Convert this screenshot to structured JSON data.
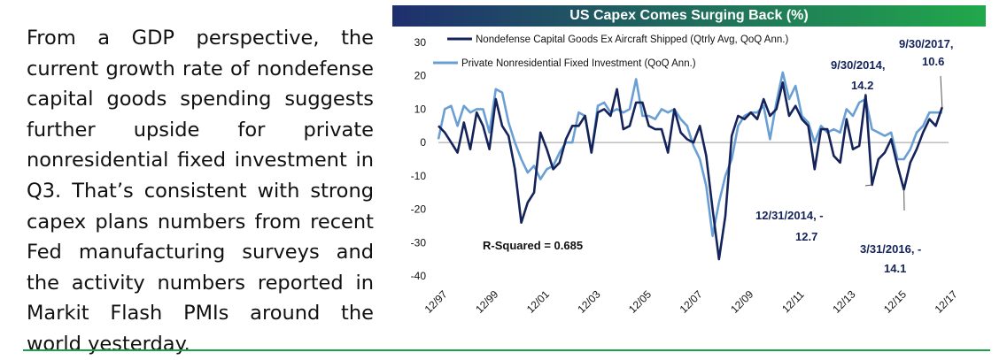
{
  "article": {
    "paragraph": "From a GDP perspective, the current growth rate of nondefense capital goods spending suggests further upside for private nonresidential fixed investment in Q3. That’s consistent with strong capex plans numbers from recent Fed manufacturing surveys and the activity numbers reported in Markit Flash PMIs around the world yesterday."
  },
  "colors": {
    "title_gradient_start": "#1f2f6e",
    "title_gradient_end": "#21a84b",
    "series_dark": "#14235a",
    "series_light": "#6a9fd4",
    "rule": "#1aa14a"
  },
  "chart_data": {
    "type": "line",
    "title": "US Capex Comes Surging Back (%)",
    "xlabel": "",
    "ylabel": "",
    "ylim": [
      -40,
      30
    ],
    "yticks": [
      30,
      20,
      10,
      0,
      -10,
      -20,
      -30,
      -40
    ],
    "xlim": [
      "1997-12",
      "2017-12"
    ],
    "xticks": [
      "12/97",
      "12/99",
      "12/01",
      "12/03",
      "12/05",
      "12/07",
      "12/09",
      "12/11",
      "12/13",
      "12/15",
      "12/17"
    ],
    "grid": false,
    "legend_position": "top",
    "series": [
      {
        "name": "Nondefense Capital Goods Ex Aircraft Shipped (Qtrly Avg, QoQ Ann.)",
        "x": [
          "1997-12",
          "1998-03",
          "1998-06",
          "1998-09",
          "1998-12",
          "1999-03",
          "1999-06",
          "1999-09",
          "1999-12",
          "2000-03",
          "2000-06",
          "2000-09",
          "2000-12",
          "2001-03",
          "2001-06",
          "2001-09",
          "2001-12",
          "2002-03",
          "2002-06",
          "2002-09",
          "2002-12",
          "2003-03",
          "2003-06",
          "2003-09",
          "2003-12",
          "2004-03",
          "2004-06",
          "2004-09",
          "2004-12",
          "2005-03",
          "2005-06",
          "2005-09",
          "2005-12",
          "2006-03",
          "2006-06",
          "2006-09",
          "2006-12",
          "2007-03",
          "2007-06",
          "2007-09",
          "2007-12",
          "2008-03",
          "2008-06",
          "2008-09",
          "2008-12",
          "2009-03",
          "2009-06",
          "2009-09",
          "2009-12",
          "2010-03",
          "2010-06",
          "2010-09",
          "2010-12",
          "2011-03",
          "2011-06",
          "2011-09",
          "2011-12",
          "2012-03",
          "2012-06",
          "2012-09",
          "2012-12",
          "2013-03",
          "2013-06",
          "2013-09",
          "2013-12",
          "2014-03",
          "2014-06",
          "2014-09",
          "2014-12",
          "2015-03",
          "2015-06",
          "2015-09",
          "2015-12",
          "2016-03",
          "2016-06",
          "2016-09",
          "2016-12",
          "2017-03",
          "2017-06",
          "2017-09"
        ],
        "values": [
          5,
          3,
          0,
          -3,
          6,
          -2,
          9,
          5,
          -2,
          13,
          5,
          2,
          -8,
          -24,
          -18,
          -15,
          3,
          -2,
          -8,
          -6,
          1,
          5,
          5,
          8,
          -3,
          9,
          10,
          8,
          16,
          4,
          5,
          12,
          12,
          5,
          4,
          4,
          -3,
          10,
          3,
          1,
          0,
          5,
          -4,
          -20,
          -35,
          -22,
          2,
          8,
          7,
          9,
          7,
          13,
          8,
          10,
          18,
          8,
          11,
          7,
          5,
          -8,
          4,
          4,
          -4,
          -6,
          7,
          -2,
          -1,
          14.2,
          -12.7,
          -5,
          -3,
          1,
          -7,
          -14.1,
          -6,
          -2,
          3,
          7,
          5,
          10.6
        ]
      },
      {
        "name": "Private Nonresidential Fixed Investment (QoQ Ann.)",
        "x": [
          "1997-12",
          "1998-03",
          "1998-06",
          "1998-09",
          "1998-12",
          "1999-03",
          "1999-06",
          "1999-09",
          "1999-12",
          "2000-03",
          "2000-06",
          "2000-09",
          "2000-12",
          "2001-03",
          "2001-06",
          "2001-09",
          "2001-12",
          "2002-03",
          "2002-06",
          "2002-09",
          "2002-12",
          "2003-03",
          "2003-06",
          "2003-09",
          "2003-12",
          "2004-03",
          "2004-06",
          "2004-09",
          "2004-12",
          "2005-03",
          "2005-06",
          "2005-09",
          "2005-12",
          "2006-03",
          "2006-06",
          "2006-09",
          "2006-12",
          "2007-03",
          "2007-06",
          "2007-09",
          "2007-12",
          "2008-03",
          "2008-06",
          "2008-09",
          "2008-12",
          "2009-03",
          "2009-06",
          "2009-09",
          "2009-12",
          "2010-03",
          "2010-06",
          "2010-09",
          "2010-12",
          "2011-03",
          "2011-06",
          "2011-09",
          "2011-12",
          "2012-03",
          "2012-06",
          "2012-09",
          "2012-12",
          "2013-03",
          "2013-06",
          "2013-09",
          "2013-12",
          "2014-03",
          "2014-06",
          "2014-09",
          "2014-12",
          "2015-03",
          "2015-06",
          "2015-09",
          "2015-12",
          "2016-03",
          "2016-06",
          "2016-09",
          "2016-12",
          "2017-03",
          "2017-06",
          "2017-09"
        ],
        "values": [
          1,
          10,
          11,
          5,
          11,
          9,
          10,
          10,
          3,
          16,
          15,
          6,
          0,
          -5,
          -9,
          -7,
          -11,
          -8,
          -7,
          -3,
          0,
          0,
          9,
          8,
          -3,
          11,
          12,
          9,
          10,
          9,
          10,
          19,
          8,
          8,
          7,
          10,
          9,
          10,
          7,
          5,
          -1,
          -5,
          -13,
          -28,
          -18,
          -10,
          -5,
          5,
          8,
          9,
          9,
          11,
          1,
          12,
          21,
          13,
          17,
          8,
          6,
          0,
          5,
          3,
          4,
          3,
          10,
          8,
          12,
          13,
          4,
          3,
          2,
          3,
          -5,
          -5,
          -2,
          3,
          5,
          9,
          9,
          9
        ]
      }
    ],
    "r_squared_label": "R-Squared = 0.685",
    "annotations": [
      {
        "label": "9/30/2017, 10.6",
        "x": "2017-09",
        "y": 10.6
      },
      {
        "label": "9/30/2014, 14.2",
        "x": "2014-09",
        "y": 14.2
      },
      {
        "label": "12/31/2014, -12.7",
        "x": "2014-12",
        "y": -12.7
      },
      {
        "label": "3/31/2016, -14.1",
        "x": "2016-03",
        "y": -14.1
      }
    ]
  }
}
